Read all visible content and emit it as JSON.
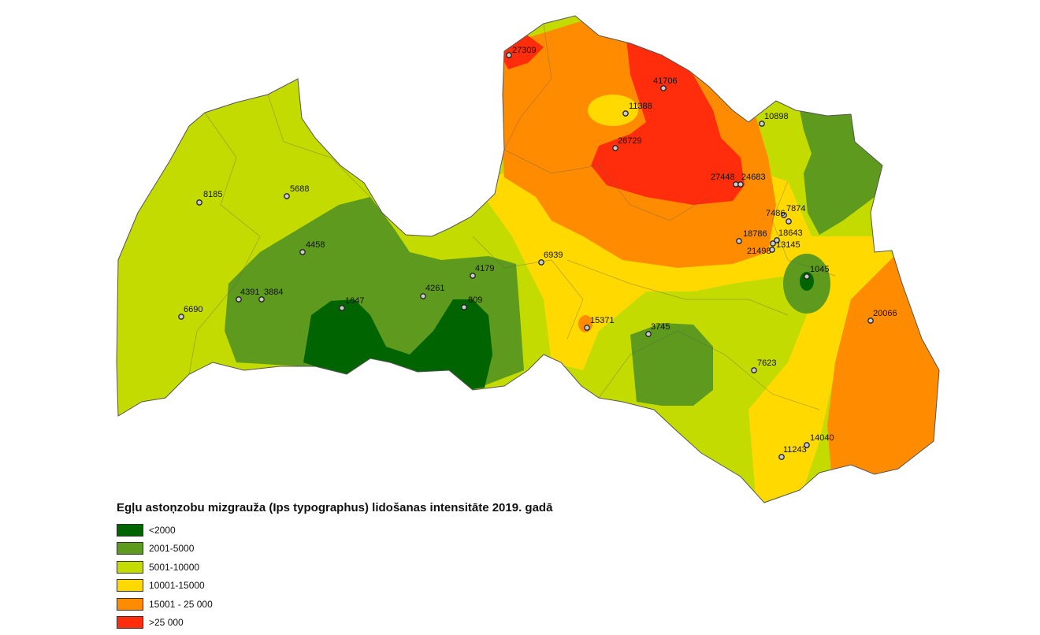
{
  "title": "Egļu astoņzobu mizgrauža (Ips typographus) lidošanas intensitāte 2019. gadā",
  "legend": [
    {
      "label": "<2000",
      "color": "#006400"
    },
    {
      "label": "2001-5000",
      "color": "#5e9a1d"
    },
    {
      "label": "5001-10000",
      "color": "#c4db00"
    },
    {
      "label": "10001-15000",
      "color": "#ffd900"
    },
    {
      "label": "15001 - 25 000",
      "color": "#ff8c00"
    },
    {
      "label": ">25 000",
      "color": "#ff2d0c"
    }
  ],
  "points": [
    "27309",
    "41706",
    "11388",
    "26729",
    "10898",
    "27448",
    "24683",
    "7486",
    "7874",
    "18786",
    "18643",
    "21498",
    "13145",
    "1045",
    "20066",
    "8185",
    "5688",
    "4458",
    "4391",
    "3884",
    "6690",
    "1647",
    "4261",
    "809",
    "4179",
    "6939",
    "15371",
    "3745",
    "7623",
    "14040",
    "11243"
  ]
}
